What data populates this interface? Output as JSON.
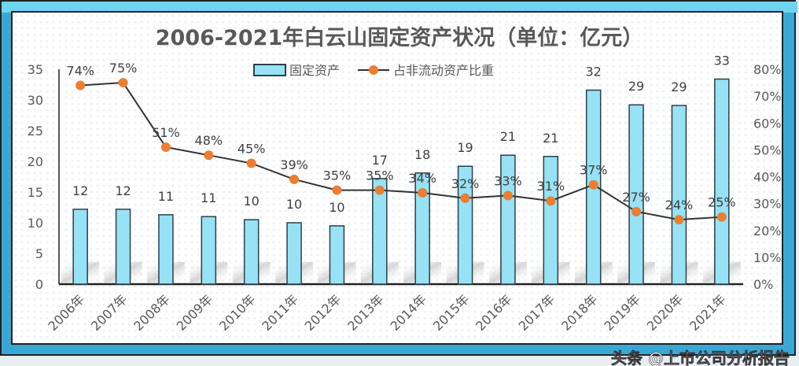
{
  "chart_data": {
    "type": "bar+line",
    "title": "2006-2021年白云山固定资产状况（单位：亿元）",
    "categories": [
      "2006年",
      "2007年",
      "2008年",
      "2009年",
      "2010年",
      "2011年",
      "2012年",
      "2013年",
      "2014年",
      "2015年",
      "2016年",
      "2017年",
      "2018年",
      "2019年",
      "2020年",
      "2021年"
    ],
    "series": [
      {
        "name": "固定资产",
        "type": "bar",
        "axis": "left",
        "color": "#97e2f5",
        "values": [
          12.2,
          12.2,
          11.3,
          11.0,
          10.5,
          10.0,
          9.5,
          17.2,
          18.1,
          19.2,
          21.0,
          20.8,
          31.6,
          29.2,
          29.1,
          33.4
        ],
        "labels": [
          "12",
          "12",
          "11",
          "11",
          "10",
          "10",
          "10",
          "17",
          "18",
          "19",
          "21",
          "21",
          "32",
          "29",
          "29",
          "33"
        ]
      },
      {
        "name": "占非流动资产比重",
        "type": "line",
        "axis": "right",
        "color": "#ed7d31",
        "values": [
          74,
          75,
          51,
          48,
          45,
          39,
          35,
          35,
          34,
          32,
          33,
          31,
          37,
          27,
          24,
          25
        ],
        "labels": [
          "74%",
          "75%",
          "51%",
          "48%",
          "45%",
          "39%",
          "35%",
          "35%",
          "34%",
          "32%",
          "33%",
          "31%",
          "37%",
          "27%",
          "24%",
          "25%"
        ]
      }
    ],
    "y_left": {
      "range": [
        0,
        35
      ],
      "ticks": [
        "0",
        "5",
        "10",
        "15",
        "20",
        "25",
        "30",
        "35"
      ]
    },
    "y_right": {
      "range": [
        0,
        80
      ],
      "ticks": [
        "0%",
        "10%",
        "20%",
        "30%",
        "40%",
        "50%",
        "60%",
        "70%",
        "80%"
      ]
    },
    "grid": false,
    "legend": "top-center"
  },
  "watermark": "头条 @上市公司分析报告"
}
